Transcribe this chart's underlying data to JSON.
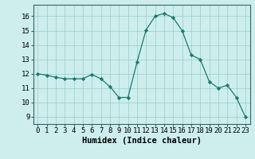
{
  "x": [
    0,
    1,
    2,
    3,
    4,
    5,
    6,
    7,
    8,
    9,
    10,
    11,
    12,
    13,
    14,
    15,
    16,
    17,
    18,
    19,
    20,
    21,
    22,
    23
  ],
  "y": [
    12.0,
    11.9,
    11.75,
    11.65,
    11.65,
    11.65,
    11.95,
    11.65,
    11.1,
    10.35,
    10.35,
    12.8,
    15.05,
    16.0,
    16.2,
    15.9,
    15.0,
    13.3,
    13.0,
    11.45,
    11.0,
    11.2,
    10.35,
    9.0
  ],
  "line_color": "#1a7a6e",
  "marker": "D",
  "marker_size": 2.2,
  "bg_color": "#cdeeed",
  "grid_color": "#99cccc",
  "xlabel": "Humidex (Indice chaleur)",
  "xlabel_fontsize": 7.5,
  "tick_fontsize": 6.5,
  "ylim": [
    8.5,
    16.8
  ],
  "yticks": [
    9,
    10,
    11,
    12,
    13,
    14,
    15,
    16
  ],
  "xlim": [
    -0.5,
    23.5
  ],
  "spine_color": "#336666"
}
